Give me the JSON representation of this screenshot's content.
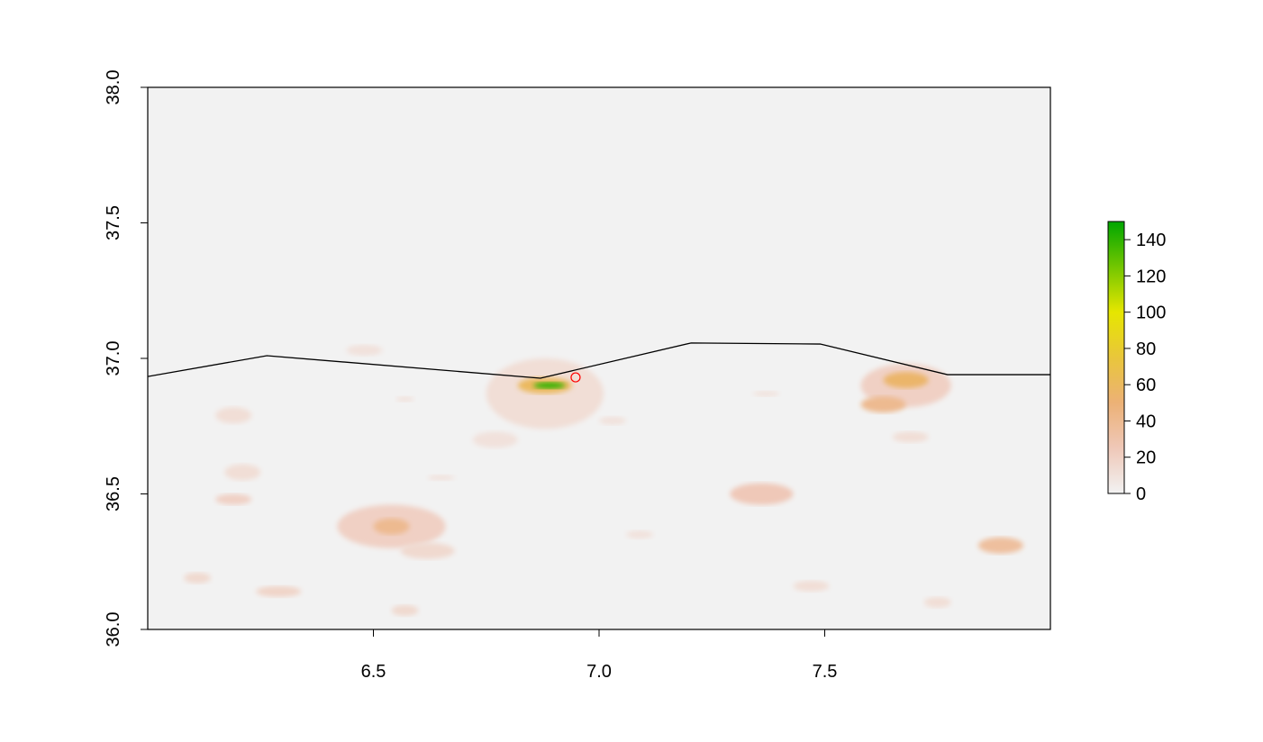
{
  "chart_data": {
    "type": "raster",
    "xlim": [
      6.0,
      8.0
    ],
    "ylim": [
      36.0,
      38.0
    ],
    "xticks": [
      6.5,
      {
        "value": 7,
        "label": "7.0"
      },
      7.5
    ],
    "yticks": [
      {
        "value": 36,
        "label": "36.0"
      },
      36.5,
      {
        "value": 37,
        "label": "37.0"
      },
      37.5,
      {
        "value": 38,
        "label": "38.0"
      }
    ],
    "background_value": 0,
    "blobs": {
      "x": [
        6.88,
        6.88,
        6.89,
        7.68,
        7.68,
        7.63,
        6.54,
        6.54,
        6.62,
        7.36,
        7.89,
        6.19,
        6.21,
        6.19,
        6.29,
        6.11,
        6.57,
        6.48,
        6.77,
        7.69,
        7.47,
        7.75,
        7.37,
        7.03,
        7.09,
        6.65,
        6.57
      ],
      "y": [
        36.87,
        36.9,
        36.9,
        36.9,
        36.92,
        36.83,
        36.38,
        36.38,
        36.29,
        36.5,
        36.31,
        36.48,
        36.58,
        36.79,
        36.14,
        36.19,
        36.07,
        37.03,
        36.7,
        36.71,
        36.16,
        36.1,
        36.87,
        36.77,
        36.35,
        36.56,
        36.85
      ],
      "rx": [
        0.13,
        0.06,
        0.035,
        0.1,
        0.05,
        0.05,
        0.12,
        0.04,
        0.06,
        0.07,
        0.05,
        0.04,
        0.04,
        0.04,
        0.05,
        0.03,
        0.03,
        0.04,
        0.05,
        0.04,
        0.04,
        0.03,
        0.03,
        0.03,
        0.03,
        0.03,
        0.02
      ],
      "ry": [
        0.13,
        0.03,
        0.012,
        0.08,
        0.03,
        0.03,
        0.08,
        0.03,
        0.03,
        0.04,
        0.03,
        0.02,
        0.03,
        0.03,
        0.02,
        0.02,
        0.02,
        0.02,
        0.03,
        0.02,
        0.02,
        0.02,
        0.01,
        0.015,
        0.015,
        0.01,
        0.01
      ],
      "values": [
        12,
        60,
        140,
        20,
        55,
        40,
        20,
        40,
        15,
        25,
        35,
        20,
        12,
        12,
        18,
        15,
        15,
        10,
        10,
        12,
        12,
        12,
        10,
        10,
        10,
        10,
        10
      ]
    },
    "line": {
      "x": [
        6.0,
        6.264,
        6.87,
        7.204,
        7.49,
        7.772,
        8.0
      ],
      "y": [
        36.933,
        37.01,
        36.927,
        37.057,
        37.053,
        36.94,
        36.94
      ],
      "color": "#000000"
    },
    "point": {
      "x": 6.948,
      "y": 36.93,
      "color": "#ff0000"
    },
    "colorbar": {
      "zlim": [
        0,
        150
      ],
      "ticks": [
        0,
        20,
        40,
        60,
        80,
        100,
        120,
        140
      ],
      "colors": [
        "#f2f2f2",
        "#efc8b8",
        "#ecb176",
        "#e9c63b",
        "#e6e600",
        "#73c600",
        "#00a600"
      ]
    }
  }
}
